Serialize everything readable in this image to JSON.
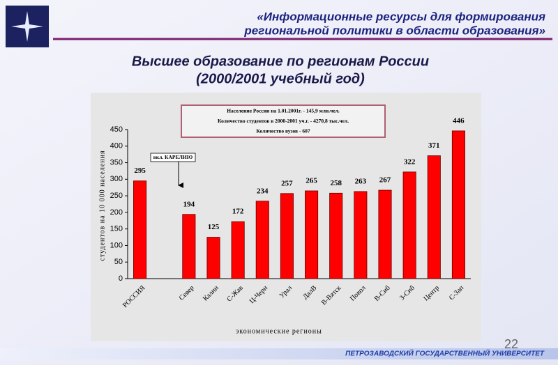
{
  "header": [
    "«Информационные ресурсы для формирования",
    "региональной политики в области образования»"
  ],
  "slide_title": [
    "Высшее образование по регионам России",
    "(2000/2001 учебный год)"
  ],
  "chart_data": {
    "type": "bar",
    "categories": [
      "РОССИЯ",
      null,
      "Север",
      "Калин",
      "С-Жав",
      "Ц-Черн",
      "Урал",
      "ДалВ",
      "В-Вятск",
      "Повол",
      "В-Сиб",
      "З-Сиб",
      "Центр",
      "С-Зап"
    ],
    "values": [
      295,
      null,
      194,
      125,
      172,
      234,
      257,
      265,
      258,
      263,
      267,
      322,
      371,
      446
    ],
    "color": "#ff0000",
    "ylim": [
      0,
      450
    ],
    "yticks": [
      0,
      50,
      100,
      150,
      200,
      250,
      300,
      350,
      400,
      450
    ],
    "y_label": "студентов на 10 000 населения",
    "x_label": "экономические регионы",
    "annotations": [
      "Население России на 1.01.2001г. - 145,9 млн.чел.",
      "Количество студентов в 2000-2001 уч.г. - 4270,8 тыс.чел.",
      "Количество вузов - 607"
    ],
    "callout": "вкл. КАРЕЛИЮ",
    "grid": false
  },
  "page_number": "22",
  "footer": "ПЕТРОЗАВОДСКИЙ ГОСУДАРСТВЕННЫЙ УНИВЕРСИТЕТ"
}
